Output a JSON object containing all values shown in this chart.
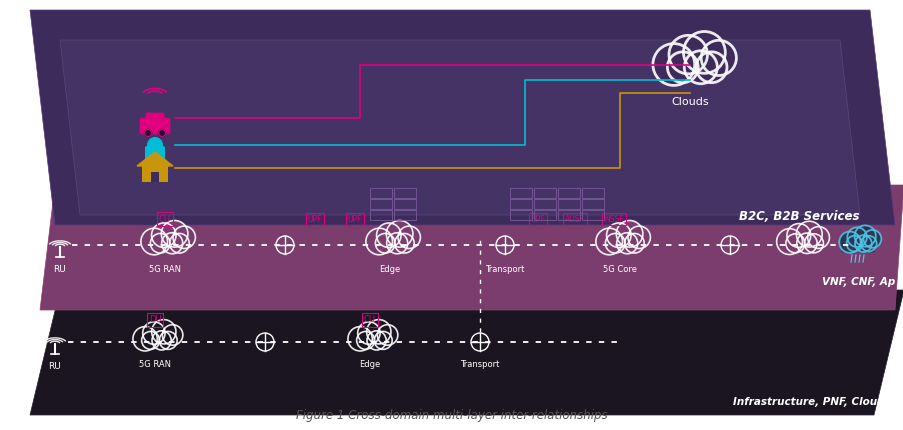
{
  "fig_width": 9.04,
  "fig_height": 4.3,
  "title": "Figure 1 Cross-domain multi-layer inter-relationships",
  "layer1_fc": "#3d2b5c",
  "layer2_fc": "#7a3d6e",
  "layer3_fc": "#1a1520",
  "layer1_label": "B2C, B2B Services",
  "layer2_label": "VNF, CNF, Ap",
  "layer3_label": "Infrastructure, PNF, Cloud",
  "magenta": "#e0007f",
  "cyan": "#00bcd4",
  "gold": "#c8960c",
  "white": "#ffffff",
  "storm_blue": "#4fc3e8",
  "grid_color": "#7a5a9a",
  "inner_panel_color": "#4a3570"
}
